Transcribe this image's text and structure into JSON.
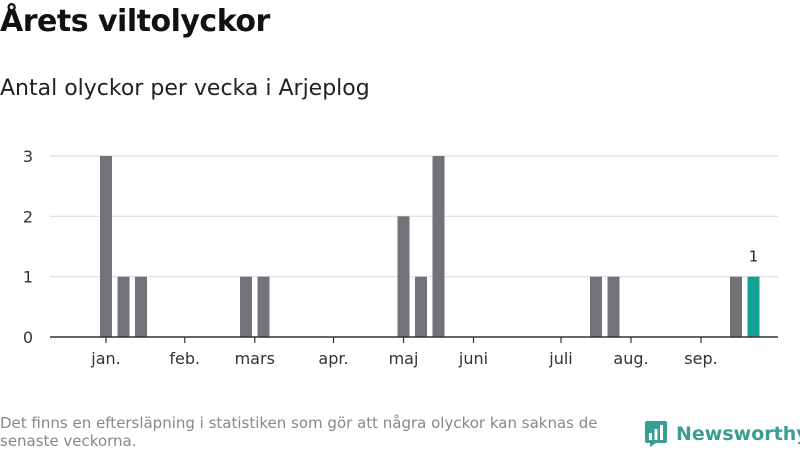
{
  "header": {
    "title": "Årets viltolyckor",
    "subtitle": "Antal olyckor per vecka i Arjeplog"
  },
  "footer": {
    "note": "Det finns en eftersläpning i statistiken som gör att några olyckor kan saknas de senaste veckorna.",
    "brand": "Newsworthy",
    "brand_icon": "newsworthy-logo-icon",
    "brand_color": "#3a9e93"
  },
  "chart_data": {
    "type": "bar",
    "title": "Årets viltolyckor",
    "subtitle": "Antal olyckor per vecka i Arjeplog",
    "xlabel": "",
    "ylabel": "",
    "ylim": [
      0,
      3
    ],
    "yticks": [
      "0",
      "1",
      "2",
      "3"
    ],
    "grid": true,
    "x_start_week": 1,
    "x_end_week": 40,
    "month_labels": [
      {
        "label": "jan.",
        "week": 2
      },
      {
        "label": "feb.",
        "week": 6.5
      },
      {
        "label": "mars",
        "week": 10.5
      },
      {
        "label": "apr.",
        "week": 15
      },
      {
        "label": "maj",
        "week": 19
      },
      {
        "label": "juni",
        "week": 23
      },
      {
        "label": "juli",
        "week": 28
      },
      {
        "label": "aug.",
        "week": 32
      },
      {
        "label": "sep.",
        "week": 36
      }
    ],
    "bars": [
      {
        "week": 2,
        "value": 3
      },
      {
        "week": 3,
        "value": 1
      },
      {
        "week": 4,
        "value": 1
      },
      {
        "week": 10,
        "value": 1
      },
      {
        "week": 11,
        "value": 1
      },
      {
        "week": 19,
        "value": 2
      },
      {
        "week": 20,
        "value": 1
      },
      {
        "week": 21,
        "value": 3
      },
      {
        "week": 30,
        "value": 1
      },
      {
        "week": 31,
        "value": 1
      },
      {
        "week": 38,
        "value": 1
      },
      {
        "week": 39,
        "value": 1,
        "highlight": true,
        "label": "1"
      }
    ],
    "colors": {
      "bar": "#737278",
      "highlight": "#12a195",
      "grid": "#dddddd",
      "axis": "#333333"
    }
  }
}
